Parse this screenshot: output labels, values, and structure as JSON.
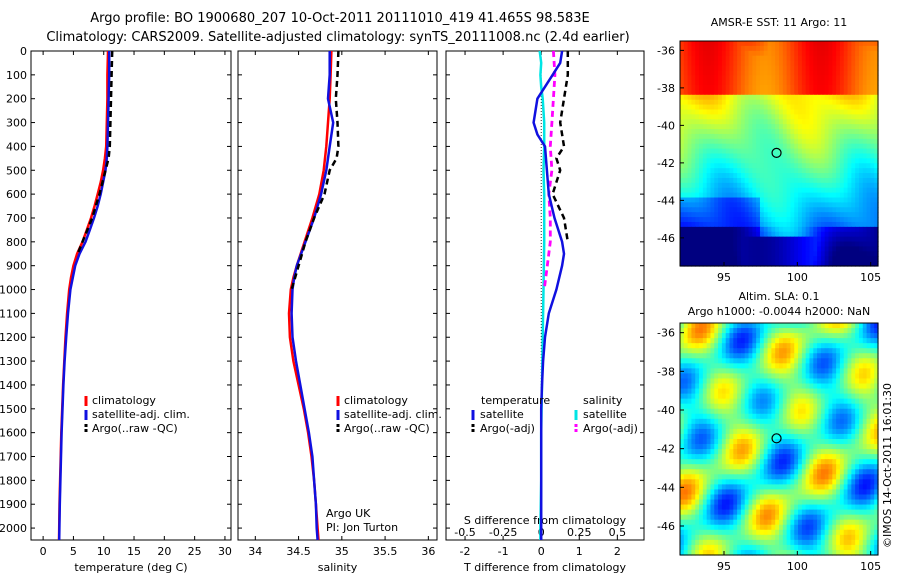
{
  "figure": {
    "title_line1": "Argo profile: BO 1900680_207 10-Oct-2011 20111010_419 41.465S 98.583E",
    "title_line2": "Climatology: CARS2009. Satellite-adjusted climatology: synTS_20111008.nc (2.4d earlier)",
    "vertical_stamp": "©IMOS 14-Oct-2011 16:01:30",
    "argo_credit_line1": "Argo UK",
    "argo_credit_line2": "PI: Jon Turton"
  },
  "colors": {
    "climatology": "#ff0000",
    "satellite": "#1010e0",
    "argo": "#000000",
    "sal_satellite": "#00e5e5",
    "sal_argo": "#ff00ff"
  },
  "chart_data": [
    {
      "type": "line",
      "name": "temperature-profile",
      "xlabel": "temperature (deg C)",
      "ylabel": "",
      "xlim": [
        -2,
        31
      ],
      "ylim": [
        2050,
        0
      ],
      "xticks": [
        0,
        5,
        10,
        15,
        20,
        25,
        30
      ],
      "xtick_labels": [
        "0",
        "5",
        "10",
        "15",
        "20",
        "25",
        "30"
      ],
      "yticks": [
        0,
        100,
        200,
        300,
        400,
        500,
        600,
        700,
        800,
        900,
        1000,
        1100,
        1200,
        1300,
        1400,
        1500,
        1600,
        1700,
        1800,
        1900,
        2000
      ],
      "ytick_labels": [
        "0",
        "100",
        "200",
        "300",
        "400",
        "500",
        "600",
        "700",
        "800",
        "900",
        "1000",
        "1100",
        "1200",
        "1300",
        "1400",
        "1500",
        "1600",
        "1700",
        "1800",
        "1900",
        "2000"
      ],
      "legend": [
        "climatology",
        "satellite-adj. clim.",
        "Argo(..raw -QC)"
      ],
      "series": [
        {
          "name": "climatology",
          "depth": [
            0,
            100,
            200,
            300,
            400,
            450,
            500,
            550,
            600,
            650,
            700,
            750,
            800,
            850,
            900,
            950,
            1000,
            1100,
            1200,
            1300,
            1400,
            1500,
            1600,
            1700,
            1800,
            1900,
            2000,
            2050
          ],
          "values": [
            10.7,
            10.6,
            10.6,
            10.5,
            10.4,
            10.2,
            9.9,
            9.5,
            9.0,
            8.5,
            7.9,
            7.2,
            6.5,
            5.6,
            5.0,
            4.6,
            4.3,
            3.95,
            3.7,
            3.5,
            3.3,
            3.15,
            3.0,
            2.9,
            2.8,
            2.7,
            2.65,
            2.62
          ]
        },
        {
          "name": "satellite",
          "depth": [
            0,
            100,
            200,
            300,
            400,
            450,
            500,
            550,
            600,
            650,
            700,
            750,
            800,
            850,
            900,
            950,
            1000,
            1100,
            1200,
            1300,
            1400,
            1500,
            1600,
            1700,
            1800,
            1900,
            2000,
            2050
          ],
          "values": [
            10.9,
            10.9,
            10.8,
            10.7,
            10.6,
            10.5,
            10.3,
            9.9,
            9.5,
            9.0,
            8.4,
            7.7,
            7.0,
            6.0,
            5.3,
            4.9,
            4.5,
            4.1,
            3.8,
            3.55,
            3.35,
            3.2,
            3.05,
            2.95,
            2.85,
            2.75,
            2.68,
            2.65
          ]
        },
        {
          "name": "argo",
          "depth": [
            0,
            100,
            200,
            300,
            400,
            450,
            500,
            550,
            600,
            650,
            700,
            750,
            800,
            850
          ],
          "values": [
            11.4,
            11.3,
            11.2,
            11.1,
            11.0,
            10.8,
            10.3,
            9.8,
            9.3,
            8.7,
            8.1,
            7.3,
            6.5,
            5.7
          ]
        }
      ]
    },
    {
      "type": "line",
      "name": "salinity-profile",
      "xlabel": "salinity",
      "xlim": [
        33.8,
        36.1
      ],
      "ylim": [
        2050,
        0
      ],
      "xticks": [
        34,
        34.5,
        35,
        35.5,
        36
      ],
      "xtick_labels": [
        "34",
        "34.5",
        "35",
        "35.5",
        "36"
      ],
      "legend": [
        "climatology",
        "satellite-adj. clim.",
        "Argo(..raw -QC)"
      ],
      "series": [
        {
          "name": "climatology",
          "depth": [
            0,
            100,
            200,
            300,
            400,
            500,
            600,
            700,
            800,
            900,
            950,
            1000,
            1100,
            1200,
            1300,
            1400,
            1500,
            1600,
            1700,
            1800,
            1900,
            2000,
            2050
          ],
          "values": [
            34.88,
            34.87,
            34.86,
            34.84,
            34.82,
            34.79,
            34.74,
            34.66,
            34.57,
            34.48,
            34.44,
            34.41,
            34.39,
            34.4,
            34.44,
            34.5,
            34.56,
            34.61,
            34.65,
            34.68,
            34.7,
            34.72,
            34.73
          ]
        },
        {
          "name": "satellite",
          "depth": [
            0,
            100,
            200,
            300,
            400,
            500,
            600,
            700,
            800,
            900,
            950,
            1000,
            1100,
            1200,
            1300,
            1400,
            1500,
            1600,
            1700,
            1800,
            1900,
            2000,
            2050
          ],
          "values": [
            34.86,
            34.86,
            34.84,
            34.9,
            34.86,
            34.82,
            34.76,
            34.68,
            34.58,
            34.48,
            34.45,
            34.43,
            34.42,
            34.43,
            34.47,
            34.52,
            34.57,
            34.62,
            34.66,
            34.68,
            34.7,
            34.71,
            34.72
          ]
        },
        {
          "name": "argo",
          "depth": [
            0,
            100,
            200,
            300,
            400,
            450,
            500,
            600,
            700,
            800,
            900,
            950,
            1000
          ],
          "values": [
            34.96,
            34.95,
            34.93,
            34.95,
            34.96,
            34.94,
            34.86,
            34.8,
            34.68,
            34.58,
            34.5,
            34.46,
            34.42
          ]
        }
      ]
    },
    {
      "type": "line",
      "name": "difference-profile",
      "xlabel": "T difference from climatology",
      "xlabel2": "S difference from climatology",
      "xlim": [
        -2.5,
        2.7
      ],
      "ylim": [
        2050,
        0
      ],
      "xticks": [
        -2,
        -1,
        0,
        1,
        2
      ],
      "xtick_labels": [
        "-2",
        "-1",
        "0",
        "1",
        "2"
      ],
      "xticks2": [
        -0.5,
        -0.25,
        0,
        0.25,
        0.5
      ],
      "xtick2_labels": [
        "-0.5",
        "-0.25",
        "0",
        "0.25",
        "0.5"
      ],
      "legend_temperature_title": "temperature",
      "legend_salinity_title": "salinity",
      "legend_satellite": "satellite",
      "legend_argo": "Argo(-adj)",
      "series": [
        {
          "name": "temperature-satellite",
          "depth": [
            0,
            50,
            100,
            200,
            300,
            350,
            400,
            500,
            600,
            700,
            800,
            850,
            900,
            1000,
            1100,
            1200,
            1300,
            1400,
            1500,
            1600,
            1800,
            2000,
            2050
          ],
          "values": [
            0.55,
            0.5,
            0.3,
            -0.1,
            -0.2,
            -0.1,
            0.1,
            0.15,
            0.2,
            0.35,
            0.55,
            0.6,
            0.55,
            0.4,
            0.2,
            0.1,
            0.05,
            0.02,
            0.0,
            0.0,
            0.0,
            0.0,
            0.0
          ]
        },
        {
          "name": "temperature-argo",
          "depth": [
            0,
            100,
            200,
            300,
            400,
            450,
            500,
            600,
            700,
            800
          ],
          "values": [
            0.7,
            0.7,
            0.6,
            0.5,
            0.6,
            0.4,
            0.5,
            0.3,
            0.6,
            0.7
          ]
        },
        {
          "name": "salinity-satellite",
          "depth": [
            0,
            50,
            100,
            150,
            200,
            300,
            400,
            500,
            600,
            800,
            1000,
            1200,
            1400,
            1600,
            1800,
            2000,
            2050
          ],
          "values": [
            -0.01,
            0.0,
            -0.005,
            0.0,
            0.01,
            0.02,
            0.02,
            0.015,
            0.02,
            0.02,
            0.015,
            0.01,
            0.005,
            0.0,
            0.0,
            -0.005,
            -0.005
          ]
        },
        {
          "name": "salinity-argo",
          "depth": [
            0,
            100,
            200,
            300,
            400,
            500,
            600,
            700,
            800,
            900,
            1000
          ],
          "values": [
            0.08,
            0.09,
            0.08,
            0.07,
            0.06,
            0.07,
            0.05,
            0.06,
            0.06,
            0.04,
            0.02
          ]
        }
      ]
    },
    {
      "type": "heatmap",
      "name": "sst-map",
      "title": "AMSR-E SST: 11 Argo: 11",
      "xlim": [
        92,
        105.5
      ],
      "ylim": [
        -47.5,
        -35.5
      ],
      "xticks": [
        95,
        100,
        105
      ],
      "xtick_labels": [
        "95",
        "100",
        "105"
      ],
      "yticks": [
        -36,
        -38,
        -40,
        -42,
        -44,
        -46
      ],
      "ytick_labels": [
        "-36",
        "-38",
        "-40",
        "-42",
        "-44",
        "-46"
      ],
      "marker": {
        "lon": 98.583,
        "lat": -41.465
      }
    },
    {
      "type": "heatmap",
      "name": "sla-map",
      "title_line1": "Altim. SLA: 0.1",
      "title_line2": "Argo h1000: -0.0044 h2000: NaN",
      "xlim": [
        92,
        105.5
      ],
      "ylim": [
        -47.5,
        -35.5
      ],
      "xticks": [
        95,
        100,
        105
      ],
      "xtick_labels": [
        "95",
        "100",
        "105"
      ],
      "yticks": [
        -36,
        -38,
        -40,
        -42,
        -44,
        -46
      ],
      "ytick_labels": [
        "-36",
        "-38",
        "-40",
        "-42",
        "-44",
        "-46"
      ],
      "marker": {
        "lon": 98.583,
        "lat": -41.465
      }
    }
  ]
}
